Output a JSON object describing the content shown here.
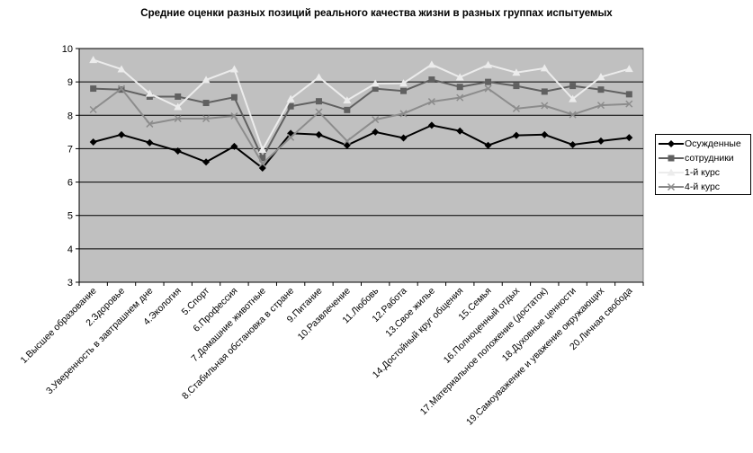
{
  "chart_data": {
    "type": "line",
    "title": "Средние оценки разных позиций реального качества жизни в разных группах испытуемых",
    "ylim": [
      3,
      10
    ],
    "yticks": [
      3,
      4,
      5,
      6,
      7,
      8,
      9,
      10
    ],
    "grid": true,
    "plot_background": "#c0c0c0",
    "legend_position": "right",
    "categories": [
      "1.Высшее образование",
      "2.Здоровье",
      "3.Уверенность в завтрашнем дне",
      "4.Экология",
      "5.Спорт",
      "6.Профессия",
      "7.Домашние животные",
      "8.Стабильная обстановка в стране",
      "9.Питание",
      "10.Развлечение",
      "11.Любовь",
      "12.Работа",
      "13.Свое жилье",
      "14.Достойный круг общения",
      "15.Семья",
      "16.Полноценный отдых",
      "17.Материальное положение (достаток)",
      "18.Духовные ценности",
      "19.Самоуважение  и уважение окружающих",
      "20.Личная свобода"
    ],
    "series": [
      {
        "name": "Осужденные",
        "color": "#000000",
        "marker": "diamond",
        "values": [
          7.2,
          7.42,
          7.18,
          6.93,
          6.6,
          7.07,
          6.42,
          7.46,
          7.42,
          7.1,
          7.5,
          7.32,
          7.7,
          7.53,
          7.1,
          7.4,
          7.42,
          7.12,
          7.23,
          7.33
        ]
      },
      {
        "name": "сотрудники",
        "color": "#606060",
        "marker": "square",
        "values": [
          8.8,
          8.77,
          8.56,
          8.56,
          8.37,
          8.54,
          6.72,
          8.27,
          8.42,
          8.16,
          8.8,
          8.73,
          9.07,
          8.85,
          9.0,
          8.88,
          8.71,
          8.88,
          8.77,
          8.63
        ]
      },
      {
        "name": "1-й курс",
        "color": "#ececec",
        "marker": "triangle",
        "values": [
          9.66,
          9.38,
          8.65,
          8.25,
          9.06,
          9.38,
          6.97,
          8.49,
          9.14,
          8.45,
          8.95,
          8.96,
          9.52,
          9.14,
          9.51,
          9.28,
          9.41,
          8.49,
          9.15,
          9.39
        ]
      },
      {
        "name": "4-й курс",
        "color": "#8c8c8c",
        "marker": "x",
        "values": [
          8.17,
          8.8,
          7.74,
          7.9,
          7.9,
          7.98,
          6.55,
          7.34,
          8.1,
          7.23,
          7.87,
          8.05,
          8.41,
          8.53,
          8.8,
          8.2,
          8.29,
          8.02,
          8.3,
          8.34
        ]
      }
    ]
  }
}
